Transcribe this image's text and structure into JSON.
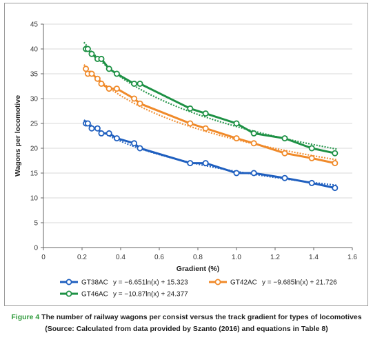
{
  "chart_data": {
    "type": "line",
    "xlabel": "Gradient (%)",
    "ylabel": "Wagons per locomotive",
    "xlim": [
      0,
      1.6
    ],
    "ylim": [
      0,
      45
    ],
    "x_ticks": [
      "0",
      "0.2",
      "0.4",
      "0.6",
      "0.8",
      "1.0",
      "1.2",
      "1.4",
      "1.6"
    ],
    "y_ticks": [
      "0",
      "5",
      "10",
      "15",
      "20",
      "25",
      "30",
      "35",
      "40",
      "45"
    ],
    "grid": "horizontal",
    "legend_position": "bottom",
    "series": [
      {
        "name": "GT38AC",
        "equation": "y = −6.651ln(x) + 15.323",
        "color": "#1f5fbf",
        "trend": {
          "a": -6.651,
          "b": 15.323
        },
        "points": [
          [
            0.22,
            25
          ],
          [
            0.23,
            25
          ],
          [
            0.25,
            24
          ],
          [
            0.28,
            24
          ],
          [
            0.3,
            23
          ],
          [
            0.34,
            23
          ],
          [
            0.38,
            22
          ],
          [
            0.47,
            21
          ],
          [
            0.5,
            20
          ],
          [
            0.76,
            17
          ],
          [
            0.84,
            17
          ],
          [
            1.0,
            15
          ],
          [
            1.09,
            15
          ],
          [
            1.25,
            14
          ],
          [
            1.39,
            13
          ],
          [
            1.51,
            12
          ]
        ]
      },
      {
        "name": "GT42AC",
        "equation": "y = −9.685ln(x) + 21.726",
        "color": "#f08a2a",
        "trend": {
          "a": -9.685,
          "b": 21.726
        },
        "points": [
          [
            0.22,
            36
          ],
          [
            0.23,
            35
          ],
          [
            0.25,
            35
          ],
          [
            0.28,
            34
          ],
          [
            0.3,
            33
          ],
          [
            0.34,
            32
          ],
          [
            0.38,
            32
          ],
          [
            0.47,
            30
          ],
          [
            0.5,
            29
          ],
          [
            0.76,
            25
          ],
          [
            0.84,
            24
          ],
          [
            1.0,
            22
          ],
          [
            1.09,
            21
          ],
          [
            1.25,
            19
          ],
          [
            1.39,
            18
          ],
          [
            1.51,
            17
          ]
        ]
      },
      {
        "name": "GT46AC",
        "equation": "y = −10.87ln(x) + 24.377",
        "color": "#1e9145",
        "trend": {
          "a": -10.87,
          "b": 24.377
        },
        "points": [
          [
            0.22,
            40
          ],
          [
            0.23,
            40
          ],
          [
            0.25,
            39
          ],
          [
            0.28,
            38
          ],
          [
            0.3,
            38
          ],
          [
            0.34,
            36
          ],
          [
            0.38,
            35
          ],
          [
            0.47,
            33
          ],
          [
            0.5,
            33
          ],
          [
            0.76,
            28
          ],
          [
            0.84,
            27
          ],
          [
            1.0,
            25
          ],
          [
            1.09,
            23
          ],
          [
            1.25,
            22
          ],
          [
            1.39,
            20
          ],
          [
            1.51,
            19
          ]
        ]
      }
    ]
  },
  "caption": {
    "figure_label": "Figure 4",
    "line1": "The number of railway wagons per consist versus the track gradient for types of locomotives",
    "line2": "(Source: Calculated from data provided by Szanto (2016) and equations in Table 8)"
  }
}
